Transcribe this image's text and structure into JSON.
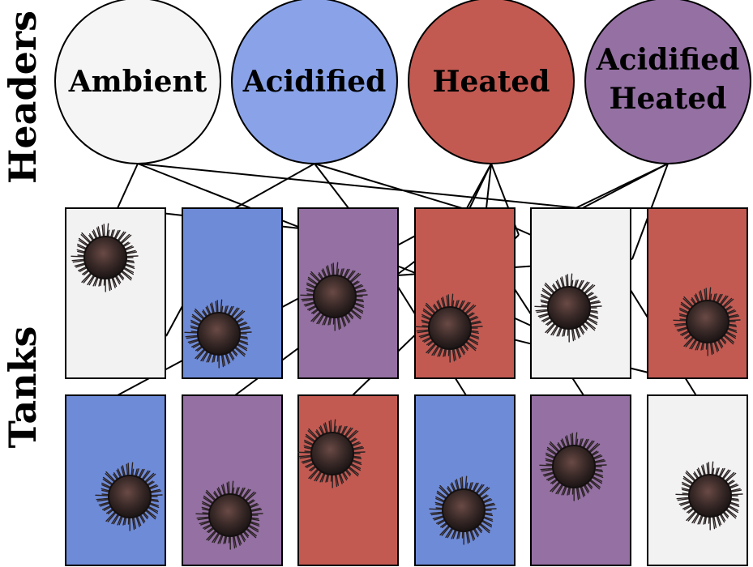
{
  "side_labels": {
    "headers": "Headers",
    "tanks": "Tanks"
  },
  "treatments": [
    {
      "id": "ambient",
      "lines": [
        "Ambient"
      ],
      "color": "#f5f5f5"
    },
    {
      "id": "acidified",
      "lines": [
        "Acidified"
      ],
      "color": "#8aa3e8"
    },
    {
      "id": "heated",
      "lines": [
        "Heated"
      ],
      "color": "#c25a52"
    },
    {
      "id": "acidified-heated",
      "lines": [
        "Acidified",
        "Heated"
      ],
      "color": "#9470a3"
    }
  ],
  "tank_colors": {
    "ambient": "#f2f2f2",
    "acidified": "#6e8bd8",
    "heated": "#c25a52",
    "acidified-heated": "#9470a3"
  },
  "tank_rows": [
    [
      "ambient",
      "acidified",
      "acidified-heated",
      "heated",
      "ambient",
      "heated"
    ],
    [
      "acidified",
      "acidified-heated",
      "heated",
      "acidified",
      "acidified-heated",
      "ambient"
    ]
  ],
  "urchin_icon": "sea-urchin-icon",
  "stroke_color": "#000000"
}
